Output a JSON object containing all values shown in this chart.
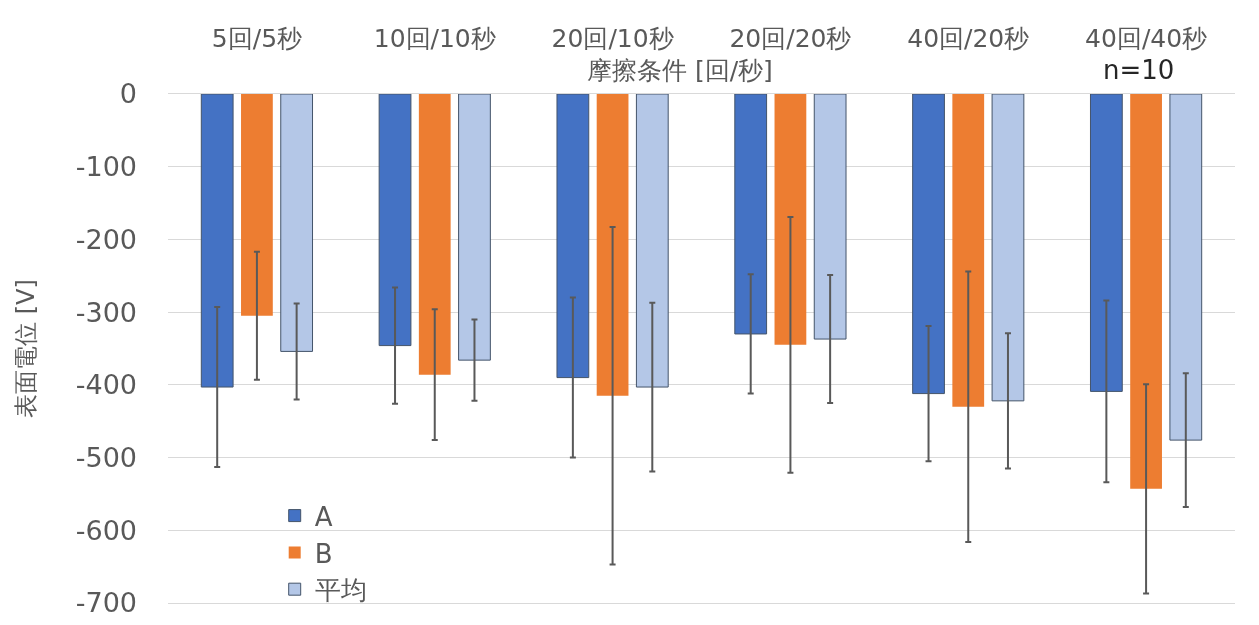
{
  "chart_data": {
    "type": "bar",
    "categories": [
      "5回/5秒",
      "10回/10秒",
      "20回/10秒",
      "20回/20秒",
      "40回/20秒",
      "40回/40秒"
    ],
    "xlabel": "摩擦条件 [回/秒]",
    "ylabel": "表面電位 [V]",
    "annotations": [
      "n=10"
    ],
    "series": [
      {
        "name": "A",
        "color": "#4472c4",
        "values": [
          -403,
          -346,
          -390,
          -330,
          -412,
          -409
        ],
        "errors": [
          110,
          80,
          110,
          82,
          93,
          125
        ]
      },
      {
        "name": "B",
        "color": "#ed7d31",
        "values": [
          -305,
          -386,
          -415,
          -345,
          -430,
          -543
        ],
        "errors": [
          88,
          90,
          232,
          176,
          186,
          144
        ]
      },
      {
        "name": "平均",
        "color": "#b4c7e7",
        "values": [
          -354,
          -366,
          -403,
          -337,
          -422,
          -476
        ],
        "errors": [
          66,
          56,
          116,
          88,
          93,
          92
        ]
      }
    ],
    "ylim": [
      -700,
      0
    ],
    "yticks": [
      0,
      -100,
      -200,
      -300,
      -400,
      -500,
      -600,
      -700
    ],
    "grid": "y",
    "legend": "bottom left"
  }
}
